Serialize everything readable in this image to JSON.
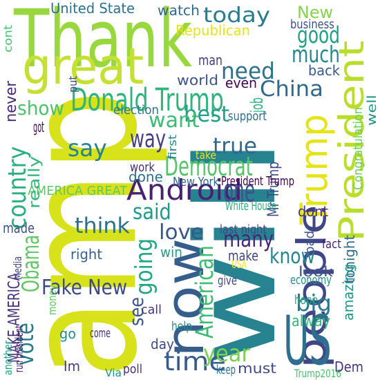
{
  "words": [
    {
      "text": "will",
      "color": "#26838f"
    },
    {
      "text": "amp",
      "color": "#d7e21a"
    },
    {
      "text": "Thank",
      "color": "#98d83e"
    },
    {
      "text": "great",
      "color": "#c4e033"
    },
    {
      "text": "President",
      "color": "#b8de29"
    },
    {
      "text": "now",
      "color": "#355e8d"
    },
    {
      "text": "people",
      "color": "#3f4788"
    },
    {
      "text": "Trump",
      "color": "#e5e419"
    },
    {
      "text": "US",
      "color": "#2e6e8e"
    },
    {
      "text": "Donald Trump",
      "color": "#2fb47c"
    },
    {
      "text": "Democrat",
      "color": "#53c568"
    },
    {
      "text": "Android",
      "color": "#482173"
    },
    {
      "text": "today",
      "color": "#287c8e"
    },
    {
      "text": "country",
      "color": "#2ab07f"
    },
    {
      "text": "one",
      "color": "#3b528b"
    },
    {
      "text": "time",
      "color": "#375b8d"
    },
    {
      "text": "year",
      "color": "#7ad151"
    },
    {
      "text": "good",
      "color": "#1fa187"
    },
    {
      "text": "much",
      "color": "#23898e"
    },
    {
      "text": "need",
      "color": "#2c728e"
    },
    {
      "text": "China",
      "color": "#31688e"
    },
    {
      "text": "best",
      "color": "#1fa187"
    },
    {
      "text": "want",
      "color": "#3dbc74"
    },
    {
      "text": "way",
      "color": "#433e85"
    },
    {
      "text": "say",
      "color": "#25838e"
    },
    {
      "text": "true",
      "color": "#31688e"
    },
    {
      "text": "show",
      "color": "#4ac16d"
    },
    {
      "text": "think",
      "color": "#2d708e"
    },
    {
      "text": "love",
      "color": "#38588c"
    },
    {
      "text": "many",
      "color": "#482576"
    },
    {
      "text": "said",
      "color": "#1e9b8a"
    },
    {
      "text": "going",
      "color": "#22a785"
    },
    {
      "text": "Obama",
      "color": "#5ec962"
    },
    {
      "text": "know",
      "color": "#24868e"
    },
    {
      "text": "Fake New",
      "color": "#3e4989"
    },
    {
      "text": "vote",
      "color": "#287c8e"
    },
    {
      "text": "see",
      "color": "#39568c"
    },
    {
      "text": "big",
      "color": "#2a788e"
    },
    {
      "text": "American",
      "color": "#3dbc74"
    },
    {
      "text": "New",
      "color": "#86d549"
    },
    {
      "text": "United State",
      "color": "#2c728e"
    },
    {
      "text": "watch",
      "color": "#31688e"
    },
    {
      "text": "Republican",
      "color": "#e5e419"
    },
    {
      "text": "back",
      "color": "#38588c"
    },
    {
      "text": "man",
      "color": "#433e85"
    },
    {
      "text": "world",
      "color": "#3b528b"
    },
    {
      "text": "even",
      "color": "#440154"
    },
    {
      "text": "job",
      "color": "#29af7f"
    },
    {
      "text": "well",
      "color": "#1f958b"
    },
    {
      "text": "AMERICA GREAT",
      "color": "#5ec962"
    },
    {
      "text": "MAKE AMERICA",
      "color": "#46327e"
    },
    {
      "text": "made",
      "color": "#3b528b"
    },
    {
      "text": "right",
      "color": "#34618d"
    },
    {
      "text": "Im",
      "color": "#443a83"
    },
    {
      "text": "dont",
      "color": "#472d7b"
    },
    {
      "text": "Mr Trump",
      "color": "#3e4989"
    },
    {
      "text": "make",
      "color": "#414487"
    },
    {
      "text": "win",
      "color": "#1f9e89"
    },
    {
      "text": "look",
      "color": "#3b528b"
    },
    {
      "text": "alway",
      "color": "#35b779"
    },
    {
      "text": "day",
      "color": "#3e4989"
    },
    {
      "text": "go",
      "color": "#228c8d"
    },
    {
      "text": "done",
      "color": "#2b748e"
    },
    {
      "text": "really",
      "color": "#35b779"
    },
    {
      "text": "never",
      "color": "#482878"
    },
    {
      "text": "must",
      "color": "#3e4989"
    },
    {
      "text": "Dem",
      "color": "#46337f"
    },
    {
      "text": "tonight",
      "color": "#31688e"
    },
    {
      "text": "amazing",
      "color": "#1f958b"
    },
    {
      "text": "economy",
      "color": "#21918c"
    },
    {
      "text": "business",
      "color": "#3b528b"
    },
    {
      "text": "Congratulation",
      "color": "#6ccd5a"
    },
    {
      "text": "New York",
      "color": "#33638d"
    },
    {
      "text": "White House",
      "color": "#2ab07f"
    },
    {
      "text": "President Trump",
      "color": "#440154"
    },
    {
      "text": "last night",
      "color": "#3e4989"
    },
    {
      "text": "election",
      "color": "#2a788e"
    },
    {
      "text": "support",
      "color": "#2e6e8e"
    },
    {
      "text": "Trump2016",
      "color": "#4ac16d"
    },
    {
      "text": "work",
      "color": "#472c7a"
    },
    {
      "text": "bad",
      "color": "#3a538b"
    },
    {
      "text": "fact",
      "color": "#482475"
    },
    {
      "text": "Media",
      "color": "#414487"
    },
    {
      "text": "USA",
      "color": "#fde725"
    },
    {
      "text": "give",
      "color": "#3e4989"
    },
    {
      "text": "hope",
      "color": "#22a785"
    },
    {
      "text": "call",
      "color": "#46337f"
    },
    {
      "text": "help",
      "color": "#21918c"
    },
    {
      "text": "come",
      "color": "#46327e"
    },
    {
      "text": "poll",
      "color": "#46327e"
    },
    {
      "text": "keep",
      "color": "#2c728e"
    },
    {
      "text": "Via",
      "color": "#1f968b"
    },
    {
      "text": "money",
      "color": "#5ec962"
    },
    {
      "text": "another",
      "color": "#20a386"
    },
    {
      "text": "run president",
      "color": "#482071"
    },
    {
      "text": "got",
      "color": "#440154"
    },
    {
      "text": "put",
      "color": "#3e4989"
    },
    {
      "text": "first",
      "color": "#25848e"
    },
    {
      "text": "take",
      "color": "#e5e419"
    },
    {
      "text": "cont",
      "color": "#48c16e"
    }
  ]
}
